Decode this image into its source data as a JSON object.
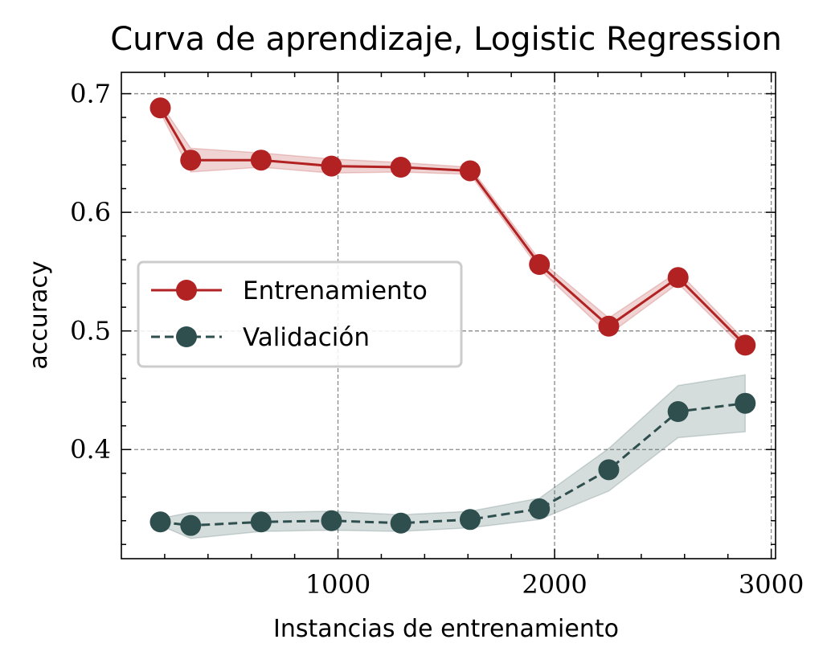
{
  "chart_data": {
    "type": "line",
    "title": "Curva de aprendizaje, Logistic Regression",
    "xlabel": "Instancias de entrenamiento",
    "ylabel": "accuracy",
    "xlim": [
      0,
      3020
    ],
    "ylim": [
      0.308,
      0.718
    ],
    "xticks": [
      1000,
      2000,
      3000
    ],
    "yticks": [
      0.4,
      0.5,
      0.6,
      0.7
    ],
    "x_minor_step": 200,
    "y_minor_step": 0.02,
    "grid": true,
    "legend_position": "center-left",
    "x": [
      180,
      320,
      645,
      970,
      1290,
      1610,
      1930,
      2250,
      2570,
      2880
    ],
    "series": [
      {
        "name": "Entrenamiento",
        "color": "#b22222",
        "linestyle": "solid",
        "marker": "circle",
        "values": [
          0.688,
          0.644,
          0.644,
          0.639,
          0.638,
          0.635,
          0.556,
          0.504,
          0.545,
          0.488
        ],
        "band_lower": [
          0.684,
          0.634,
          0.638,
          0.633,
          0.634,
          0.632,
          0.552,
          0.497,
          0.54,
          0.484
        ],
        "band_upper": [
          0.692,
          0.654,
          0.65,
          0.645,
          0.642,
          0.638,
          0.56,
          0.511,
          0.55,
          0.492
        ]
      },
      {
        "name": "Validación",
        "color": "#2f4f4f",
        "linestyle": "dashed",
        "marker": "circle",
        "values": [
          0.339,
          0.336,
          0.339,
          0.34,
          0.338,
          0.341,
          0.35,
          0.383,
          0.432,
          0.439
        ],
        "band_lower": [
          0.336,
          0.325,
          0.331,
          0.332,
          0.331,
          0.334,
          0.341,
          0.365,
          0.41,
          0.415
        ],
        "band_upper": [
          0.342,
          0.347,
          0.347,
          0.348,
          0.345,
          0.348,
          0.359,
          0.401,
          0.454,
          0.463
        ]
      }
    ]
  }
}
